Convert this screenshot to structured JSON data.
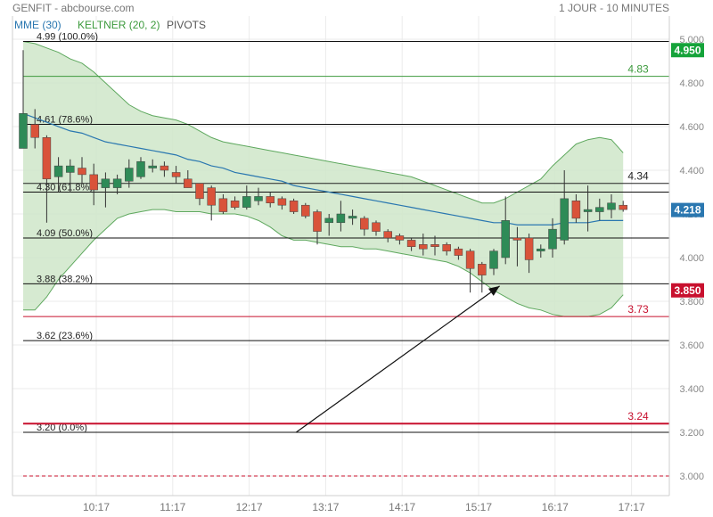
{
  "header": {
    "title": "GENFIT - abcbourse.com",
    "period": "1 JOUR - 10 MINUTES"
  },
  "indicators": [
    "MME (30)",
    "KELTNER (20, 2)",
    "PIVOTS"
  ],
  "colors": {
    "up": "#2e8b57",
    "down": "#d9533a",
    "keltner_fill": "#cfe6c9",
    "keltner_line": "#5ea85e",
    "mme": "#2a77b0",
    "last_price": "#15a33a",
    "highlight": "#c8102e"
  },
  "chart_data": {
    "type": "candlestick",
    "y_axis": {
      "ylim": [
        2.97,
        5.07
      ],
      "ticks": [
        "3.000",
        "3.200",
        "3.400",
        "3.600",
        "3.800",
        "4.000",
        "4.200",
        "4.400",
        "4.600",
        "4.800",
        "5.000"
      ]
    },
    "x_axis": {
      "ticks": [
        "10:17",
        "11:17",
        "12:17",
        "13:17",
        "14:17",
        "15:17",
        "16:17",
        "17:17"
      ]
    },
    "candles": [
      {
        "o": 4.5,
        "h": 4.95,
        "l": 4.5,
        "c": 4.66
      },
      {
        "o": 4.61,
        "h": 4.68,
        "l": 4.5,
        "c": 4.55
      },
      {
        "o": 4.55,
        "h": 4.56,
        "l": 4.16,
        "c": 4.36
      },
      {
        "o": 4.37,
        "h": 4.46,
        "l": 4.3,
        "c": 4.42
      },
      {
        "o": 4.39,
        "h": 4.45,
        "l": 4.3,
        "c": 4.42
      },
      {
        "o": 4.41,
        "h": 4.46,
        "l": 4.34,
        "c": 4.38
      },
      {
        "o": 4.38,
        "h": 4.43,
        "l": 4.24,
        "c": 4.31
      },
      {
        "o": 4.32,
        "h": 4.39,
        "l": 4.23,
        "c": 4.36
      },
      {
        "o": 4.32,
        "h": 4.38,
        "l": 4.29,
        "c": 4.36
      },
      {
        "o": 4.35,
        "h": 4.45,
        "l": 4.32,
        "c": 4.41
      },
      {
        "o": 4.37,
        "h": 4.46,
        "l": 4.36,
        "c": 4.44
      },
      {
        "o": 4.41,
        "h": 4.45,
        "l": 4.39,
        "c": 4.42
      },
      {
        "o": 4.42,
        "h": 4.44,
        "l": 4.37,
        "c": 4.4
      },
      {
        "o": 4.39,
        "h": 4.42,
        "l": 4.34,
        "c": 4.37
      },
      {
        "o": 4.36,
        "h": 4.4,
        "l": 4.32,
        "c": 4.32
      },
      {
        "o": 4.34,
        "h": 4.34,
        "l": 4.24,
        "c": 4.27
      },
      {
        "o": 4.32,
        "h": 4.33,
        "l": 4.17,
        "c": 4.24
      },
      {
        "o": 4.27,
        "h": 4.29,
        "l": 4.2,
        "c": 4.21
      },
      {
        "o": 4.26,
        "h": 4.28,
        "l": 4.22,
        "c": 4.23
      },
      {
        "o": 4.23,
        "h": 4.33,
        "l": 4.22,
        "c": 4.28
      },
      {
        "o": 4.26,
        "h": 4.32,
        "l": 4.24,
        "c": 4.28
      },
      {
        "o": 4.28,
        "h": 4.3,
        "l": 4.23,
        "c": 4.25
      },
      {
        "o": 4.27,
        "h": 4.28,
        "l": 4.22,
        "c": 4.24
      },
      {
        "o": 4.26,
        "h": 4.27,
        "l": 4.2,
        "c": 4.21
      },
      {
        "o": 4.24,
        "h": 4.25,
        "l": 4.18,
        "c": 4.19
      },
      {
        "o": 4.21,
        "h": 4.22,
        "l": 4.06,
        "c": 4.12
      },
      {
        "o": 4.16,
        "h": 4.2,
        "l": 4.1,
        "c": 4.18
      },
      {
        "o": 4.16,
        "h": 4.26,
        "l": 4.12,
        "c": 4.2
      },
      {
        "o": 4.18,
        "h": 4.22,
        "l": 4.15,
        "c": 4.19
      },
      {
        "o": 4.18,
        "h": 4.19,
        "l": 4.1,
        "c": 4.13
      },
      {
        "o": 4.16,
        "h": 4.17,
        "l": 4.1,
        "c": 4.12
      },
      {
        "o": 4.12,
        "h": 4.13,
        "l": 4.07,
        "c": 4.09
      },
      {
        "o": 4.1,
        "h": 4.11,
        "l": 4.06,
        "c": 4.08
      },
      {
        "o": 4.08,
        "h": 4.09,
        "l": 4.03,
        "c": 4.05
      },
      {
        "o": 4.06,
        "h": 4.11,
        "l": 4.01,
        "c": 4.04
      },
      {
        "o": 4.06,
        "h": 4.1,
        "l": 4.01,
        "c": 4.05
      },
      {
        "o": 4.06,
        "h": 4.07,
        "l": 4.01,
        "c": 4.03
      },
      {
        "o": 4.04,
        "h": 4.05,
        "l": 3.99,
        "c": 4.01
      },
      {
        "o": 4.03,
        "h": 4.04,
        "l": 3.84,
        "c": 3.95
      },
      {
        "o": 3.97,
        "h": 3.98,
        "l": 3.84,
        "c": 3.92
      },
      {
        "o": 3.95,
        "h": 4.04,
        "l": 3.92,
        "c": 4.03
      },
      {
        "o": 4.0,
        "h": 4.28,
        "l": 3.97,
        "c": 4.17
      },
      {
        "o": 4.09,
        "h": 4.14,
        "l": 3.96,
        "c": 4.08
      },
      {
        "o": 4.09,
        "h": 4.11,
        "l": 3.93,
        "c": 3.99
      },
      {
        "o": 4.03,
        "h": 4.06,
        "l": 4.0,
        "c": 4.04
      },
      {
        "o": 4.04,
        "h": 4.18,
        "l": 4.0,
        "c": 4.13
      },
      {
        "o": 4.08,
        "h": 4.4,
        "l": 4.06,
        "c": 4.27
      },
      {
        "o": 4.26,
        "h": 4.29,
        "l": 4.16,
        "c": 4.18
      },
      {
        "o": 4.21,
        "h": 4.33,
        "l": 4.12,
        "c": 4.22
      },
      {
        "o": 4.21,
        "h": 4.27,
        "l": 4.17,
        "c": 4.23
      },
      {
        "o": 4.22,
        "h": 4.29,
        "l": 4.18,
        "c": 4.25
      },
      {
        "o": 4.24,
        "h": 4.26,
        "l": 4.21,
        "c": 4.22
      }
    ],
    "mme": [
      4.66,
      4.64,
      4.62,
      4.6,
      4.58,
      4.57,
      4.55,
      4.53,
      4.52,
      4.51,
      4.5,
      4.49,
      4.48,
      4.47,
      4.45,
      4.44,
      4.42,
      4.41,
      4.39,
      4.38,
      4.37,
      4.36,
      4.35,
      4.33,
      4.32,
      4.31,
      4.3,
      4.29,
      4.28,
      4.27,
      4.26,
      4.25,
      4.24,
      4.23,
      4.22,
      4.21,
      4.2,
      4.19,
      4.18,
      4.17,
      4.16,
      4.16,
      4.15,
      4.15,
      4.15,
      4.15,
      4.16,
      4.16,
      4.16,
      4.17,
      4.17,
      4.17
    ],
    "keltner_upper": [
      4.99,
      4.98,
      4.96,
      4.94,
      4.91,
      4.89,
      4.85,
      4.8,
      4.75,
      4.7,
      4.67,
      4.65,
      4.64,
      4.63,
      4.61,
      4.58,
      4.55,
      4.53,
      4.52,
      4.51,
      4.5,
      4.49,
      4.48,
      4.47,
      4.46,
      4.45,
      4.44,
      4.43,
      4.42,
      4.41,
      4.4,
      4.39,
      4.38,
      4.37,
      4.35,
      4.33,
      4.31,
      4.29,
      4.27,
      4.25,
      4.25,
      4.27,
      4.3,
      4.33,
      4.36,
      4.42,
      4.47,
      4.52,
      4.54,
      4.55,
      4.54,
      4.48
    ],
    "keltner_lower": [
      3.76,
      3.76,
      3.82,
      3.9,
      3.96,
      4.02,
      4.08,
      4.13,
      4.18,
      4.2,
      4.21,
      4.22,
      4.22,
      4.21,
      4.21,
      4.21,
      4.2,
      4.2,
      4.2,
      4.19,
      4.17,
      4.14,
      4.1,
      4.08,
      4.08,
      4.07,
      4.06,
      4.05,
      4.05,
      4.04,
      4.04,
      4.03,
      4.02,
      4.01,
      4.0,
      3.99,
      3.98,
      3.96,
      3.93,
      3.89,
      3.85,
      3.82,
      3.79,
      3.77,
      3.76,
      3.74,
      3.73,
      3.73,
      3.73,
      3.74,
      3.77,
      3.83
    ],
    "fib_levels": [
      {
        "value": 4.99,
        "label": "4.99",
        "pct": "(100.0%)"
      },
      {
        "value": 4.61,
        "label": "4.61",
        "pct": "(78.6%)"
      },
      {
        "value": 4.3,
        "label": "4.30",
        "pct": "(61.8%)"
      },
      {
        "value": 4.09,
        "label": "4.09",
        "pct": "(50.0%)"
      },
      {
        "value": 3.88,
        "label": "3.88",
        "pct": "(38.2%)"
      },
      {
        "value": 3.62,
        "label": "3.62",
        "pct": "(23.6%)"
      },
      {
        "value": 3.2,
        "label": "3.20",
        "pct": "(0.0%)"
      }
    ],
    "pivots": [
      {
        "value": 4.83,
        "label": "4.83",
        "color": "#3c9a3c"
      },
      {
        "value": 4.34,
        "label": "4.34",
        "color": "#222222"
      },
      {
        "value": 3.73,
        "label": "3.73",
        "color": "#c8102e"
      },
      {
        "value": 3.24,
        "label": "3.24",
        "color": "#c8102e"
      }
    ],
    "dashed_level": 3.0,
    "price_tags": [
      {
        "value": 4.95,
        "label": "4.950",
        "color": "#15a33a"
      },
      {
        "value": 4.218,
        "label": "4.218",
        "color": "#2a77b0"
      },
      {
        "value": 3.85,
        "label": "3.850",
        "color": "#c8102e"
      }
    ],
    "arrow": {
      "from": {
        "x": 23.2,
        "y": 3.2
      },
      "to": {
        "x": 40.5,
        "y": 3.87
      }
    },
    "grid": true
  }
}
